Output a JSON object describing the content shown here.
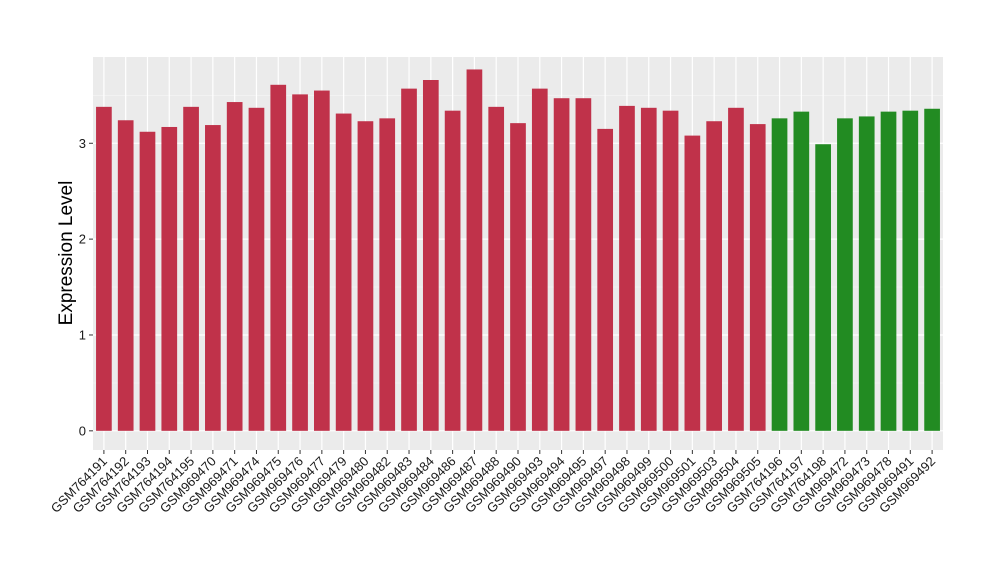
{
  "chart_data": {
    "type": "bar",
    "title": "",
    "xlabel": "",
    "ylabel": "Expression Level",
    "ylim": [
      -0.2,
      3.9
    ],
    "yticks": [
      0,
      1,
      2,
      3
    ],
    "grid": true,
    "background": "#ebebeb",
    "categories": [
      "GSM764191",
      "GSM764192",
      "GSM764193",
      "GSM764194",
      "GSM764195",
      "GSM969470",
      "GSM969471",
      "GSM969474",
      "GSM969475",
      "GSM969476",
      "GSM969477",
      "GSM969479",
      "GSM969480",
      "GSM969482",
      "GSM969483",
      "GSM969484",
      "GSM969486",
      "GSM969487",
      "GSM969488",
      "GSM969490",
      "GSM969493",
      "GSM969494",
      "GSM969495",
      "GSM969497",
      "GSM969498",
      "GSM969499",
      "GSM969500",
      "GSM969501",
      "GSM969503",
      "GSM969504",
      "GSM969505",
      "GSM764196",
      "GSM764197",
      "GSM764198",
      "GSM969472",
      "GSM969473",
      "GSM969478",
      "GSM969491",
      "GSM969492"
    ],
    "values": [
      3.38,
      3.24,
      3.12,
      3.17,
      3.38,
      3.19,
      3.43,
      3.37,
      3.61,
      3.51,
      3.55,
      3.31,
      3.23,
      3.26,
      3.57,
      3.66,
      3.34,
      3.77,
      3.38,
      3.21,
      3.57,
      3.47,
      3.47,
      3.15,
      3.39,
      3.37,
      3.34,
      3.08,
      3.23,
      3.37,
      3.2,
      3.26,
      3.33,
      2.99,
      3.26,
      3.28,
      3.33,
      3.34,
      3.36
    ],
    "groups": [
      "red",
      "red",
      "red",
      "red",
      "red",
      "red",
      "red",
      "red",
      "red",
      "red",
      "red",
      "red",
      "red",
      "red",
      "red",
      "red",
      "red",
      "red",
      "red",
      "red",
      "red",
      "red",
      "red",
      "red",
      "red",
      "red",
      "red",
      "red",
      "red",
      "red",
      "red",
      "green",
      "green",
      "green",
      "green",
      "green",
      "green",
      "green",
      "green"
    ],
    "colors": {
      "red": "#c0324a",
      "green": "#228b22"
    }
  }
}
